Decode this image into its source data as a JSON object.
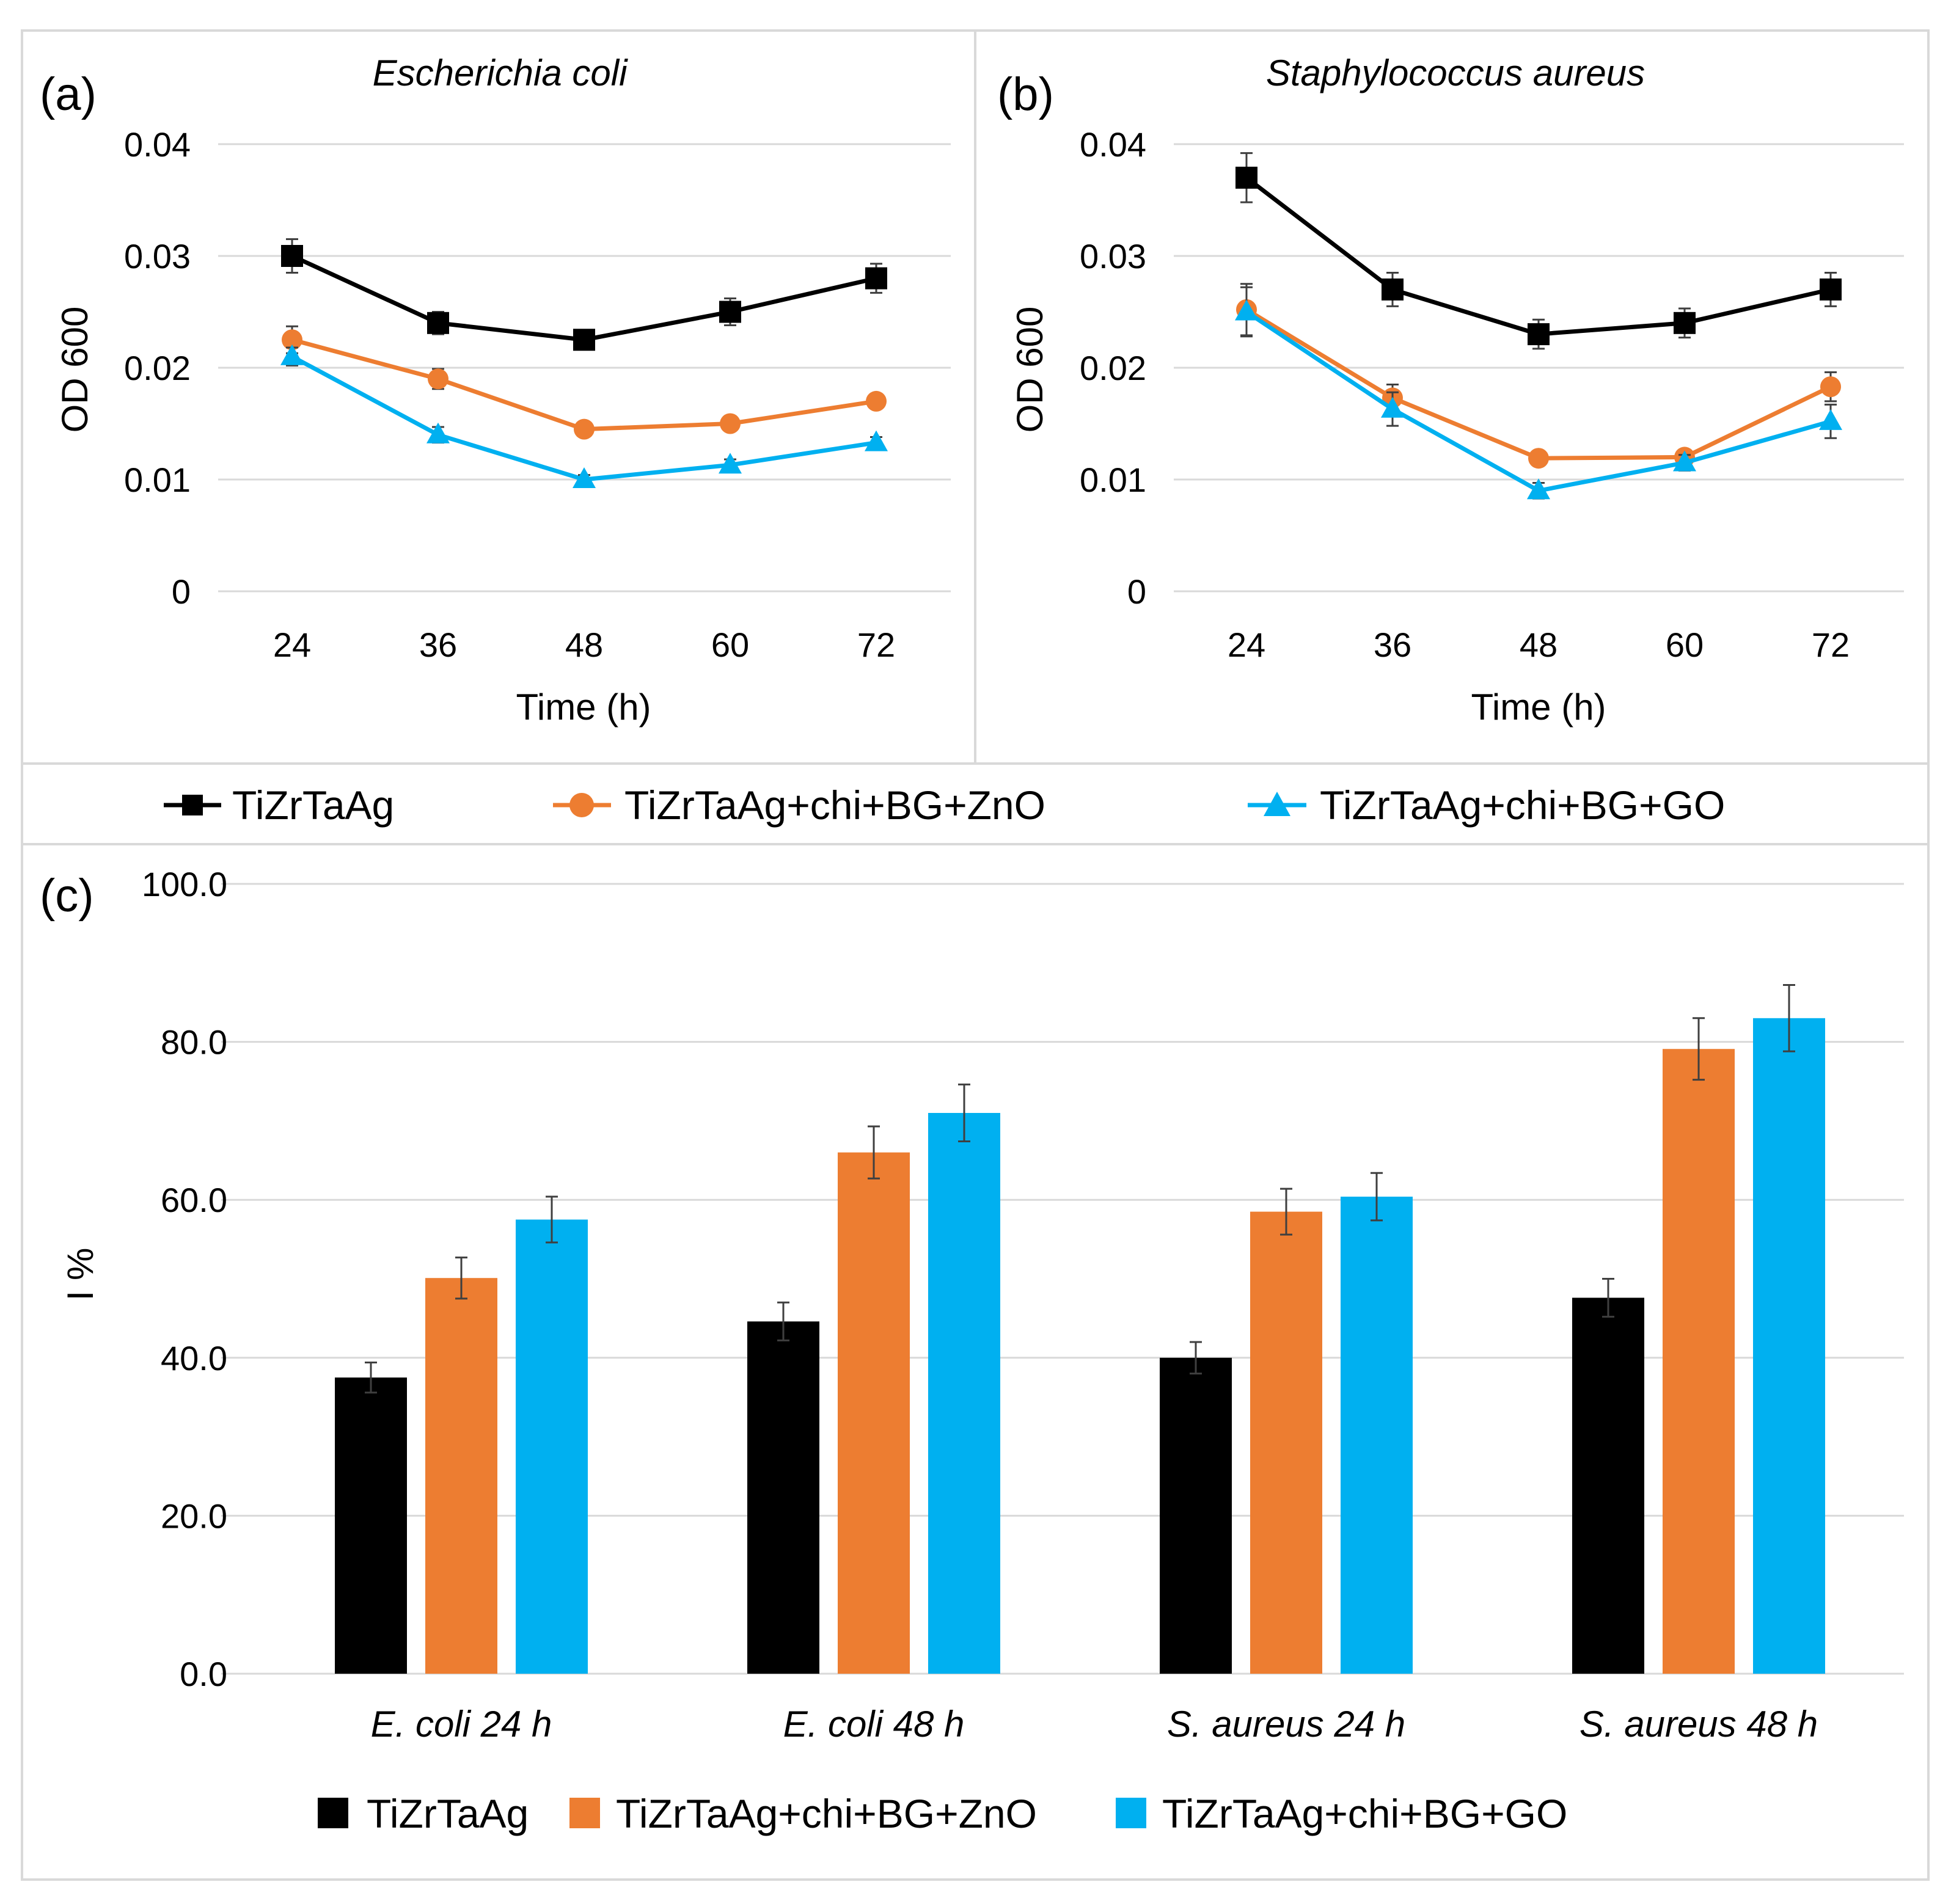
{
  "colors": {
    "TiZrTaAg": "#000000",
    "TiZrTaAg+chi+BG+ZnO": "#ED7D31",
    "TiZrTaAg+chi+BG+GO": "#00B0F0",
    "grid": "#D9D9D9"
  },
  "chart_data": [
    {
      "id": "a",
      "type": "line",
      "panel_label": "(a)",
      "title": "Escherichia coli",
      "xlabel": "Time (h)",
      "ylabel": "OD 600",
      "x": [
        "24",
        "36",
        "48",
        "60",
        "72"
      ],
      "ylim": [
        0,
        0.04
      ],
      "yticks": [
        "0",
        "0.01",
        "0.02",
        "0.03",
        "0.04"
      ],
      "yticks_values": [
        0,
        0.01,
        0.02,
        0.03,
        0.04
      ],
      "series": [
        {
          "name": "TiZrTaAg",
          "marker": "square",
          "values": [
            0.03,
            0.024,
            0.0225,
            0.025,
            0.028
          ],
          "errors": [
            0.0015,
            0.001,
            0.0008,
            0.0012,
            0.0013
          ]
        },
        {
          "name": "TiZrTaAg+chi+BG+ZnO",
          "marker": "circle",
          "values": [
            0.0225,
            0.019,
            0.0145,
            0.015,
            0.017
          ],
          "errors": [
            0.0012,
            0.0009,
            0.0005,
            0.0005,
            0.0005
          ]
        },
        {
          "name": "TiZrTaAg+chi+BG+GO",
          "marker": "triangle",
          "values": [
            0.021,
            0.014,
            0.01,
            0.0113,
            0.0133
          ],
          "errors": [
            0.0008,
            0.0007,
            0.0004,
            0.0005,
            0.0005
          ]
        }
      ]
    },
    {
      "id": "b",
      "type": "line",
      "panel_label": "(b)",
      "title": "Staphylococcus aureus",
      "xlabel": "Time (h)",
      "ylabel": "OD 600",
      "x": [
        "24",
        "36",
        "48",
        "60",
        "72"
      ],
      "ylim": [
        0,
        0.04
      ],
      "yticks": [
        "0",
        "0.01",
        "0.02",
        "0.03",
        "0.04"
      ],
      "yticks_values": [
        0,
        0.01,
        0.02,
        0.03,
        0.04
      ],
      "series": [
        {
          "name": "TiZrTaAg",
          "marker": "square",
          "values": [
            0.037,
            0.027,
            0.023,
            0.024,
            0.027
          ],
          "errors": [
            0.0022,
            0.0015,
            0.0013,
            0.0013,
            0.0015
          ]
        },
        {
          "name": "TiZrTaAg+chi+BG+ZnO",
          "marker": "circle",
          "values": [
            0.0252,
            0.0173,
            0.0119,
            0.012,
            0.0183
          ],
          "errors": [
            0.0023,
            0.0012,
            0.0006,
            0.0006,
            0.0013
          ]
        },
        {
          "name": "TiZrTaAg+chi+BG+GO",
          "marker": "triangle",
          "values": [
            0.025,
            0.0163,
            0.009,
            0.0115,
            0.0152
          ],
          "errors": [
            0.0022,
            0.0015,
            0.0007,
            0.0007,
            0.0015
          ]
        }
      ]
    },
    {
      "id": "c",
      "type": "bar",
      "panel_label": "(c)",
      "title": "",
      "xlabel": "",
      "ylabel": "I %",
      "categories": [
        "E. coli 24 h",
        "E. coli 48 h",
        "S. aureus 24 h",
        "S. aureus 48 h"
      ],
      "ylim": [
        0,
        100
      ],
      "yticks": [
        "0.0",
        "20.0",
        "40.0",
        "60.0",
        "80.0",
        "100.0"
      ],
      "yticks_values": [
        0,
        20,
        40,
        60,
        80,
        100
      ],
      "series": [
        {
          "name": "TiZrTaAg",
          "values": [
            37.5,
            44.6,
            40.0,
            47.6
          ],
          "errors": [
            1.9,
            2.4,
            2.0,
            2.4
          ]
        },
        {
          "name": "TiZrTaAg+chi+BG+ZnO",
          "values": [
            50.1,
            66.0,
            58.5,
            79.1
          ],
          "errors": [
            2.6,
            3.3,
            2.9,
            3.9
          ]
        },
        {
          "name": "TiZrTaAg+chi+BG+GO",
          "values": [
            57.5,
            71.0,
            60.4,
            83.0
          ],
          "errors": [
            2.9,
            3.6,
            3.0,
            4.2
          ]
        }
      ]
    }
  ],
  "legend_lines": [
    "TiZrTaAg",
    "TiZrTaAg+chi+BG+ZnO",
    "TiZrTaAg+chi+BG+GO"
  ],
  "legend_bars": [
    "TiZrTaAg",
    "TiZrTaAg+chi+BG+ZnO",
    "TiZrTaAg+chi+BG+GO"
  ]
}
